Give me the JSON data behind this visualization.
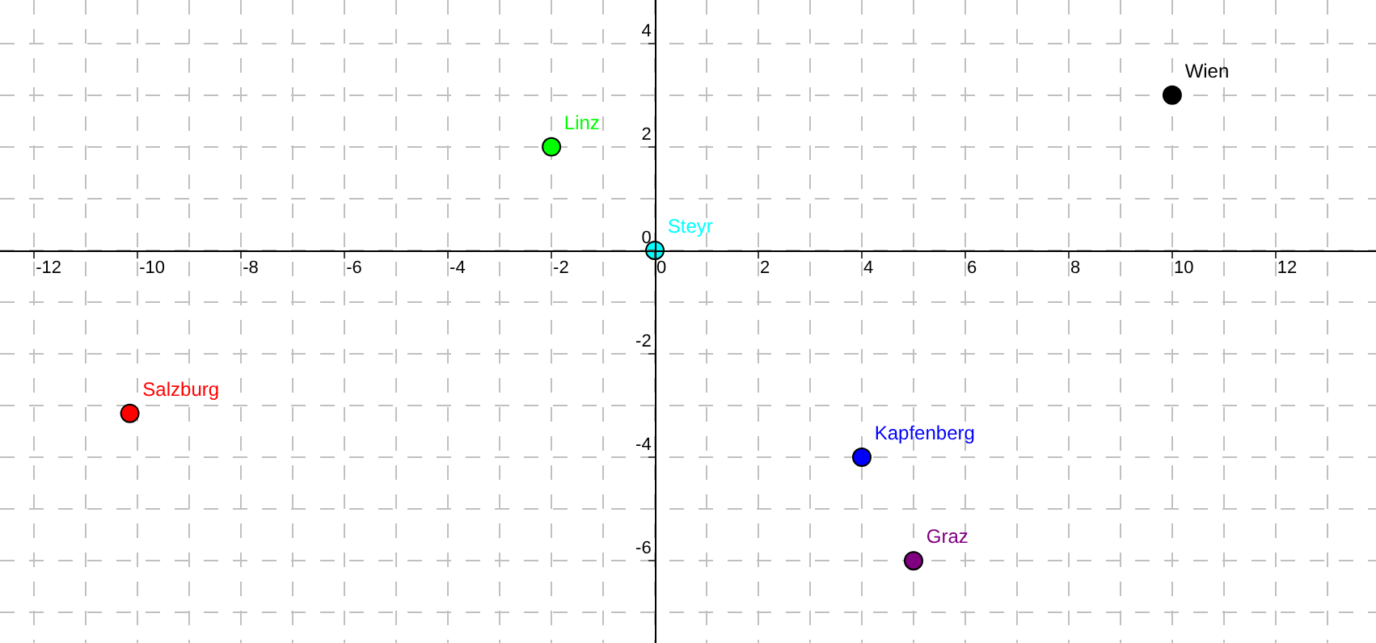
{
  "chart_data": {
    "type": "scatter",
    "marker": "circle",
    "legend": false,
    "grid": true,
    "xlim": [
      -12.66,
      13.94
    ],
    "ylim": [
      -7.59,
      4.84
    ],
    "xticks": [
      -12,
      -10,
      -8,
      -6,
      -4,
      -2,
      0,
      2,
      4,
      6,
      8,
      10,
      12
    ],
    "yticks": [
      -6,
      -4,
      -2,
      0,
      2,
      4
    ],
    "series": [
      {
        "name": "Wien",
        "color": "#000000",
        "x": [
          10
        ],
        "values": [
          3
        ]
      },
      {
        "name": "Linz",
        "color": "#00ff00",
        "x": [
          -2
        ],
        "values": [
          2
        ]
      },
      {
        "name": "Steyr",
        "color": "#00ffff",
        "x": [
          0
        ],
        "values": [
          0
        ]
      },
      {
        "name": "Salzburg",
        "color": "#ff0000",
        "x": [
          -10.15
        ],
        "values": [
          -3.15
        ]
      },
      {
        "name": "Kapfenberg",
        "color": "#0000ff",
        "x": [
          4
        ],
        "values": [
          -4
        ]
      },
      {
        "name": "Graz",
        "color": "#800080",
        "x": [
          5
        ],
        "values": [
          -6
        ]
      }
    ]
  }
}
